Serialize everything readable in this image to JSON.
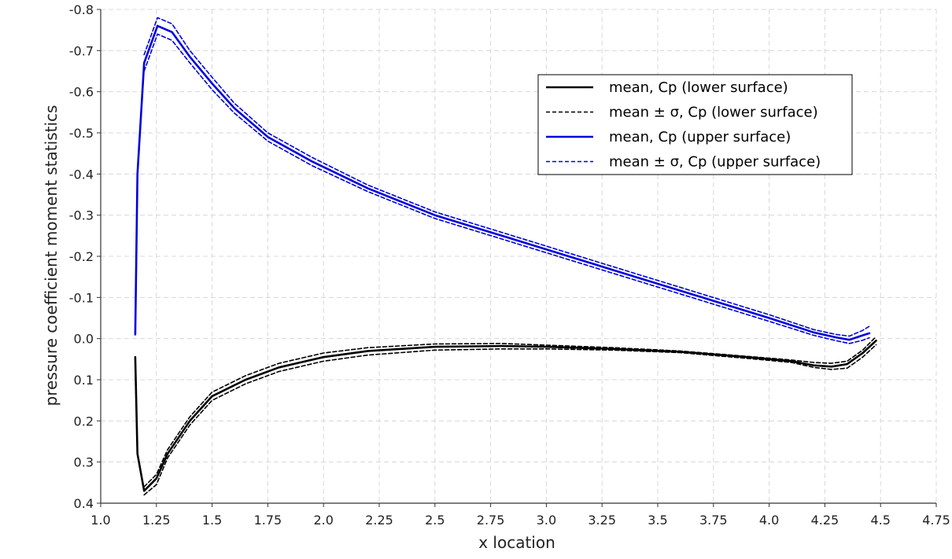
{
  "chart_data": {
    "type": "line",
    "title": "",
    "xlabel": "x location",
    "ylabel": "pressure coefficient moment statistics",
    "xlim": [
      1.0,
      4.75
    ],
    "ylim": [
      0.4,
      -0.8
    ],
    "y_inverted": true,
    "xticks": [
      1.0,
      1.25,
      1.5,
      1.75,
      2.0,
      2.25,
      2.5,
      2.75,
      3.0,
      3.25,
      3.5,
      3.75,
      4.0,
      4.25,
      4.5,
      4.75
    ],
    "xtick_labels": [
      "1.0",
      "1.25",
      "1.5",
      "1.75",
      "2.0",
      "2.25",
      "2.5",
      "2.75",
      "3.0",
      "3.25",
      "3.5",
      "3.75",
      "4.0",
      "4.25",
      "4.5",
      "4.75"
    ],
    "yticks": [
      -0.8,
      -0.7,
      -0.6,
      -0.5,
      -0.4,
      -0.3,
      -0.2,
      -0.1,
      0.0,
      0.1,
      0.2,
      0.3,
      0.4
    ],
    "ytick_labels": [
      "-0.8",
      "-0.7",
      "-0.6",
      "-0.5",
      "-0.4",
      "-0.3",
      "-0.2",
      "-0.1",
      "0.0",
      "0.1",
      "0.2",
      "0.3",
      "0.4"
    ],
    "grid": true,
    "legend_position": "top-right",
    "series": [
      {
        "name": "mean, Cp (lower surface)",
        "color": "#000000",
        "style": "solid",
        "x": [
          1.155,
          1.165,
          1.195,
          1.25,
          1.3,
          1.4,
          1.5,
          1.65,
          1.8,
          2.0,
          2.2,
          2.5,
          2.8,
          3.0,
          3.3,
          3.6,
          3.9,
          4.1,
          4.2,
          4.28,
          4.35,
          4.42,
          4.48
        ],
        "y": [
          0.045,
          0.28,
          0.37,
          0.34,
          0.28,
          0.2,
          0.14,
          0.1,
          0.07,
          0.045,
          0.03,
          0.02,
          0.018,
          0.02,
          0.025,
          0.032,
          0.045,
          0.055,
          0.065,
          0.068,
          0.062,
          0.035,
          0.005
        ]
      },
      {
        "name": "mean ± σ, Cp (lower surface)",
        "color": "#000000",
        "style": "dashed",
        "x": [
          1.195,
          1.25,
          1.3,
          1.4,
          1.5,
          1.65,
          1.8,
          2.0,
          2.2,
          2.5,
          2.8,
          3.0,
          3.3,
          3.6,
          3.9,
          4.1,
          4.2,
          4.28,
          4.35,
          4.42,
          4.48
        ],
        "y": [
          0.36,
          0.33,
          0.27,
          0.19,
          0.13,
          0.09,
          0.06,
          0.035,
          0.022,
          0.013,
          0.012,
          0.016,
          0.022,
          0.03,
          0.043,
          0.052,
          0.058,
          0.06,
          0.055,
          0.028,
          -0.005
        ]
      },
      {
        "name": "",
        "color": "#000000",
        "style": "dashed",
        "x": [
          1.195,
          1.25,
          1.3,
          1.4,
          1.5,
          1.65,
          1.8,
          2.0,
          2.2,
          2.5,
          2.8,
          3.0,
          3.3,
          3.6,
          3.9,
          4.1,
          4.2,
          4.28,
          4.35,
          4.42,
          4.48
        ],
        "y": [
          0.38,
          0.355,
          0.29,
          0.21,
          0.15,
          0.11,
          0.08,
          0.055,
          0.04,
          0.028,
          0.025,
          0.025,
          0.028,
          0.034,
          0.048,
          0.058,
          0.07,
          0.075,
          0.072,
          0.045,
          0.015
        ]
      },
      {
        "name": "mean, Cp (upper surface)",
        "color": "#0000dd",
        "style": "solid",
        "x": [
          1.155,
          1.165,
          1.195,
          1.255,
          1.32,
          1.4,
          1.5,
          1.6,
          1.75,
          1.95,
          2.2,
          2.5,
          2.8,
          3.1,
          3.4,
          3.7,
          4.0,
          4.2,
          4.3,
          4.36,
          4.42,
          4.45
        ],
        "y": [
          -0.01,
          -0.4,
          -0.67,
          -0.76,
          -0.745,
          -0.685,
          -0.62,
          -0.56,
          -0.49,
          -0.43,
          -0.365,
          -0.3,
          -0.25,
          -0.2,
          -0.15,
          -0.1,
          -0.05,
          -0.015,
          -0.003,
          0.003,
          -0.008,
          -0.013
        ]
      },
      {
        "name": "mean ± σ, Cp (upper surface)",
        "color": "#0000dd",
        "style": "dashed",
        "x": [
          1.195,
          1.255,
          1.32,
          1.4,
          1.5,
          1.6,
          1.75,
          1.95,
          2.2,
          2.5,
          2.8,
          3.1,
          3.4,
          3.7,
          4.0,
          4.2,
          4.3,
          4.36,
          4.42,
          4.45
        ],
        "y": [
          -0.69,
          -0.78,
          -0.765,
          -0.7,
          -0.635,
          -0.572,
          -0.5,
          -0.44,
          -0.373,
          -0.308,
          -0.258,
          -0.208,
          -0.158,
          -0.108,
          -0.058,
          -0.022,
          -0.01,
          -0.006,
          -0.02,
          -0.03
        ]
      },
      {
        "name": "",
        "color": "#0000dd",
        "style": "dashed",
        "x": [
          1.195,
          1.255,
          1.32,
          1.4,
          1.5,
          1.6,
          1.75,
          1.95,
          2.2,
          2.5,
          2.8,
          3.1,
          3.4,
          3.7,
          4.0,
          4.2,
          4.3,
          4.36,
          4.42,
          4.45
        ],
        "y": [
          -0.65,
          -0.74,
          -0.725,
          -0.67,
          -0.605,
          -0.548,
          -0.48,
          -0.42,
          -0.357,
          -0.292,
          -0.242,
          -0.192,
          -0.142,
          -0.092,
          -0.042,
          -0.008,
          0.005,
          0.012,
          0.004,
          -0.002
        ]
      }
    ],
    "legend": [
      {
        "label": "mean, Cp (lower surface)",
        "color": "#000000",
        "style": "solid"
      },
      {
        "label": "mean ± σ, Cp (lower surface)",
        "color": "#000000",
        "style": "dashed"
      },
      {
        "label": "mean, Cp (upper surface)",
        "color": "#0000dd",
        "style": "solid"
      },
      {
        "label": "mean ± σ, Cp (upper surface)",
        "color": "#0000dd",
        "style": "dashed"
      }
    ]
  }
}
